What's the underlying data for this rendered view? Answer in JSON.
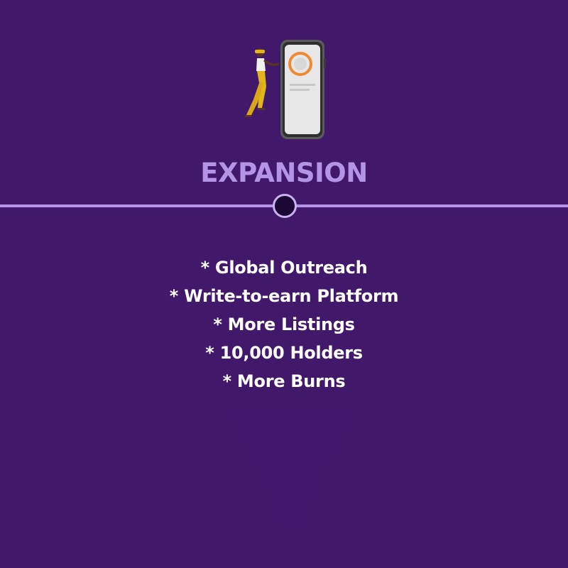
{
  "heading": "EXPANSION",
  "features": [
    "* Global Outreach",
    "* Write-to-earn Platform",
    "* More Listings",
    "* 10,000 Holders",
    "* More Burns"
  ],
  "colors": {
    "background": "#42186a",
    "heading": "#b394e6",
    "divider": "#b394e6",
    "node_fill": "#1a0733",
    "text": "#ffffff",
    "phone_accent": "#f08a32",
    "figure_pants": "#e2b51e"
  }
}
